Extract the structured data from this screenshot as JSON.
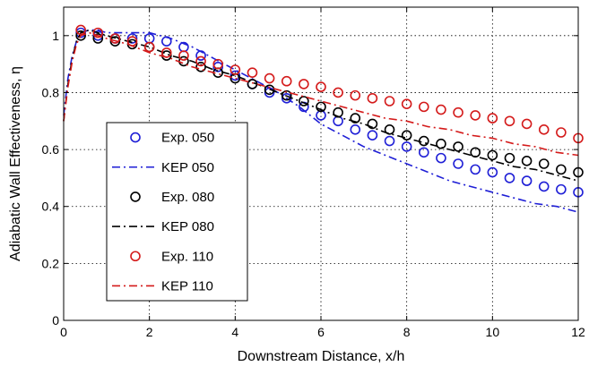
{
  "chart_data": {
    "type": "line",
    "xlabel": "Downstream Distance, x/h",
    "ylabel": "Adiabatic Wall Effectiveness, η",
    "xlim": [
      0,
      12
    ],
    "ylim": [
      0,
      1.1
    ],
    "xticks": [
      0,
      2,
      4,
      6,
      8,
      10,
      12
    ],
    "yticks": [
      0,
      0.2,
      0.4,
      0.6,
      0.8,
      1
    ],
    "xtick_labels": [
      "0",
      "2",
      "4",
      "6",
      "8",
      "10",
      "12"
    ],
    "ytick_labels": [
      "0",
      "0.2",
      "0.4",
      "0.6",
      "0.8",
      "1"
    ],
    "grid": true,
    "legend_position": "left",
    "series": [
      {
        "name": "Exp. 050",
        "style": "markers",
        "color": "#1f1fd6",
        "x": [
          0.4,
          0.8,
          1.2,
          1.6,
          2.0,
          2.4,
          2.8,
          3.2,
          3.6,
          4.0,
          4.4,
          4.8,
          5.2,
          5.6,
          6.0,
          6.4,
          6.8,
          7.2,
          7.6,
          8.0,
          8.4,
          8.8,
          9.2,
          9.6,
          10.0,
          10.4,
          10.8,
          11.2,
          11.6,
          12.0
        ],
        "y": [
          1.01,
          1.0,
          0.99,
          0.99,
          0.99,
          0.98,
          0.96,
          0.93,
          0.89,
          0.86,
          0.83,
          0.8,
          0.78,
          0.75,
          0.72,
          0.7,
          0.67,
          0.65,
          0.63,
          0.61,
          0.59,
          0.57,
          0.55,
          0.53,
          0.52,
          0.5,
          0.49,
          0.47,
          0.46,
          0.45
        ]
      },
      {
        "name": "KEP 050",
        "style": "dashdot",
        "color": "#1f1fd6",
        "x": [
          0,
          0.1,
          0.2,
          0.3,
          0.4,
          0.6,
          0.8,
          1.0,
          1.5,
          2.0,
          2.5,
          3.0,
          3.5,
          4.0,
          4.5,
          5.0,
          5.5,
          6.0,
          6.5,
          7.0,
          7.5,
          8.0,
          8.5,
          9.0,
          9.5,
          10.0,
          10.5,
          11.0,
          11.5,
          12.0
        ],
        "y": [
          0.72,
          0.85,
          0.93,
          0.98,
          1.01,
          1.02,
          1.02,
          1.01,
          1.01,
          1.01,
          0.99,
          0.96,
          0.92,
          0.88,
          0.84,
          0.8,
          0.75,
          0.69,
          0.65,
          0.61,
          0.58,
          0.55,
          0.52,
          0.49,
          0.47,
          0.45,
          0.43,
          0.41,
          0.4,
          0.38
        ]
      },
      {
        "name": "Exp. 080",
        "style": "markers",
        "color": "#000000",
        "x": [
          0.4,
          0.8,
          1.2,
          1.6,
          2.0,
          2.4,
          2.8,
          3.2,
          3.6,
          4.0,
          4.4,
          4.8,
          5.2,
          5.6,
          6.0,
          6.4,
          6.8,
          7.2,
          7.6,
          8.0,
          8.4,
          8.8,
          9.2,
          9.6,
          10.0,
          10.4,
          10.8,
          11.2,
          11.6,
          12.0
        ],
        "y": [
          1.0,
          0.99,
          0.98,
          0.97,
          0.96,
          0.93,
          0.91,
          0.89,
          0.87,
          0.85,
          0.83,
          0.81,
          0.79,
          0.77,
          0.75,
          0.73,
          0.71,
          0.69,
          0.67,
          0.65,
          0.63,
          0.62,
          0.61,
          0.59,
          0.58,
          0.57,
          0.56,
          0.55,
          0.53,
          0.52
        ]
      },
      {
        "name": "KEP 080",
        "style": "dashdot",
        "color": "#000000",
        "x": [
          0,
          0.1,
          0.2,
          0.3,
          0.4,
          0.6,
          0.8,
          1.0,
          1.5,
          2.0,
          2.5,
          3.0,
          3.5,
          4.0,
          4.5,
          5.0,
          5.5,
          6.0,
          6.5,
          7.0,
          7.5,
          8.0,
          8.5,
          9.0,
          9.5,
          10.0,
          10.5,
          11.0,
          11.5,
          12.0
        ],
        "y": [
          0.7,
          0.83,
          0.92,
          0.98,
          1.01,
          1.02,
          1.01,
          1.0,
          0.98,
          0.96,
          0.93,
          0.91,
          0.88,
          0.86,
          0.83,
          0.8,
          0.77,
          0.74,
          0.71,
          0.69,
          0.66,
          0.64,
          0.62,
          0.6,
          0.58,
          0.56,
          0.54,
          0.53,
          0.51,
          0.49
        ]
      },
      {
        "name": "Exp. 110",
        "style": "markers",
        "color": "#d41a1a",
        "x": [
          0.4,
          0.8,
          1.2,
          1.6,
          2.0,
          2.4,
          2.8,
          3.2,
          3.6,
          4.0,
          4.4,
          4.8,
          5.2,
          5.6,
          6.0,
          6.4,
          6.8,
          7.2,
          7.6,
          8.0,
          8.4,
          8.8,
          9.2,
          9.6,
          10.0,
          10.4,
          10.8,
          11.2,
          11.6,
          12.0
        ],
        "y": [
          1.02,
          1.01,
          0.99,
          0.98,
          0.96,
          0.94,
          0.93,
          0.91,
          0.9,
          0.88,
          0.87,
          0.85,
          0.84,
          0.83,
          0.82,
          0.8,
          0.79,
          0.78,
          0.77,
          0.76,
          0.75,
          0.74,
          0.73,
          0.72,
          0.71,
          0.7,
          0.69,
          0.67,
          0.66,
          0.64
        ]
      },
      {
        "name": "KEP 110",
        "style": "dashdot",
        "color": "#d41a1a",
        "x": [
          0,
          0.1,
          0.2,
          0.3,
          0.4,
          0.6,
          0.8,
          1.0,
          1.5,
          2.0,
          2.5,
          3.0,
          3.5,
          4.0,
          4.5,
          5.0,
          5.5,
          6.0,
          6.5,
          7.0,
          7.5,
          8.0,
          8.5,
          9.0,
          9.5,
          10.0,
          10.5,
          11.0,
          11.5,
          12.0
        ],
        "y": [
          0.7,
          0.82,
          0.91,
          0.97,
          1.0,
          1.01,
          1.0,
          0.99,
          0.97,
          0.94,
          0.92,
          0.89,
          0.87,
          0.85,
          0.83,
          0.81,
          0.79,
          0.77,
          0.75,
          0.73,
          0.71,
          0.7,
          0.68,
          0.67,
          0.65,
          0.64,
          0.62,
          0.61,
          0.59,
          0.58
        ]
      }
    ]
  }
}
